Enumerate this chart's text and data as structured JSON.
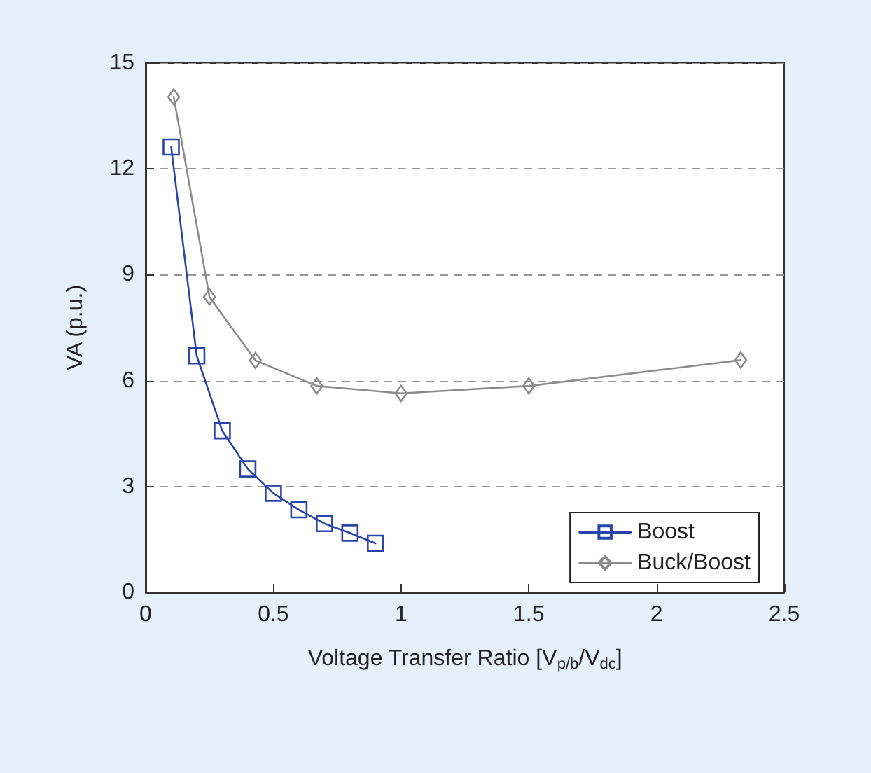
{
  "chart_data": {
    "type": "line",
    "xlabel": "Voltage Transfer Ratio [V$_{p/b}$/V$_{dc}$]",
    "ylabel": "VA (p.u.)",
    "series": [
      {
        "name": "Boost",
        "color": "#2a45a8",
        "marker": "square",
        "x": [
          0.1,
          0.2,
          0.3,
          0.4,
          0.5,
          0.6,
          0.7,
          0.8,
          0.9
        ],
        "values": [
          12.62,
          6.7,
          4.58,
          3.5,
          2.81,
          2.34,
          1.95,
          1.68,
          1.39
        ]
      },
      {
        "name": "Buck/Boost",
        "color": "#8c8c8c",
        "marker": "diamond",
        "x": [
          0.11,
          0.25,
          0.43,
          0.67,
          1,
          1.5,
          2.33
        ],
        "values": [
          14.04,
          8.37,
          6.57,
          5.85,
          5.64,
          5.85,
          6.58
        ]
      }
    ],
    "xlim": [
      0,
      2.5
    ],
    "xticks": [
      0,
      0.5,
      1,
      1.5,
      2,
      2.5
    ],
    "ylim": [
      0,
      15
    ],
    "yticks": [
      0,
      3,
      6,
      9,
      12,
      15
    ],
    "grid": "y",
    "legend": "bottom right",
    "line_style": "solid"
  }
}
